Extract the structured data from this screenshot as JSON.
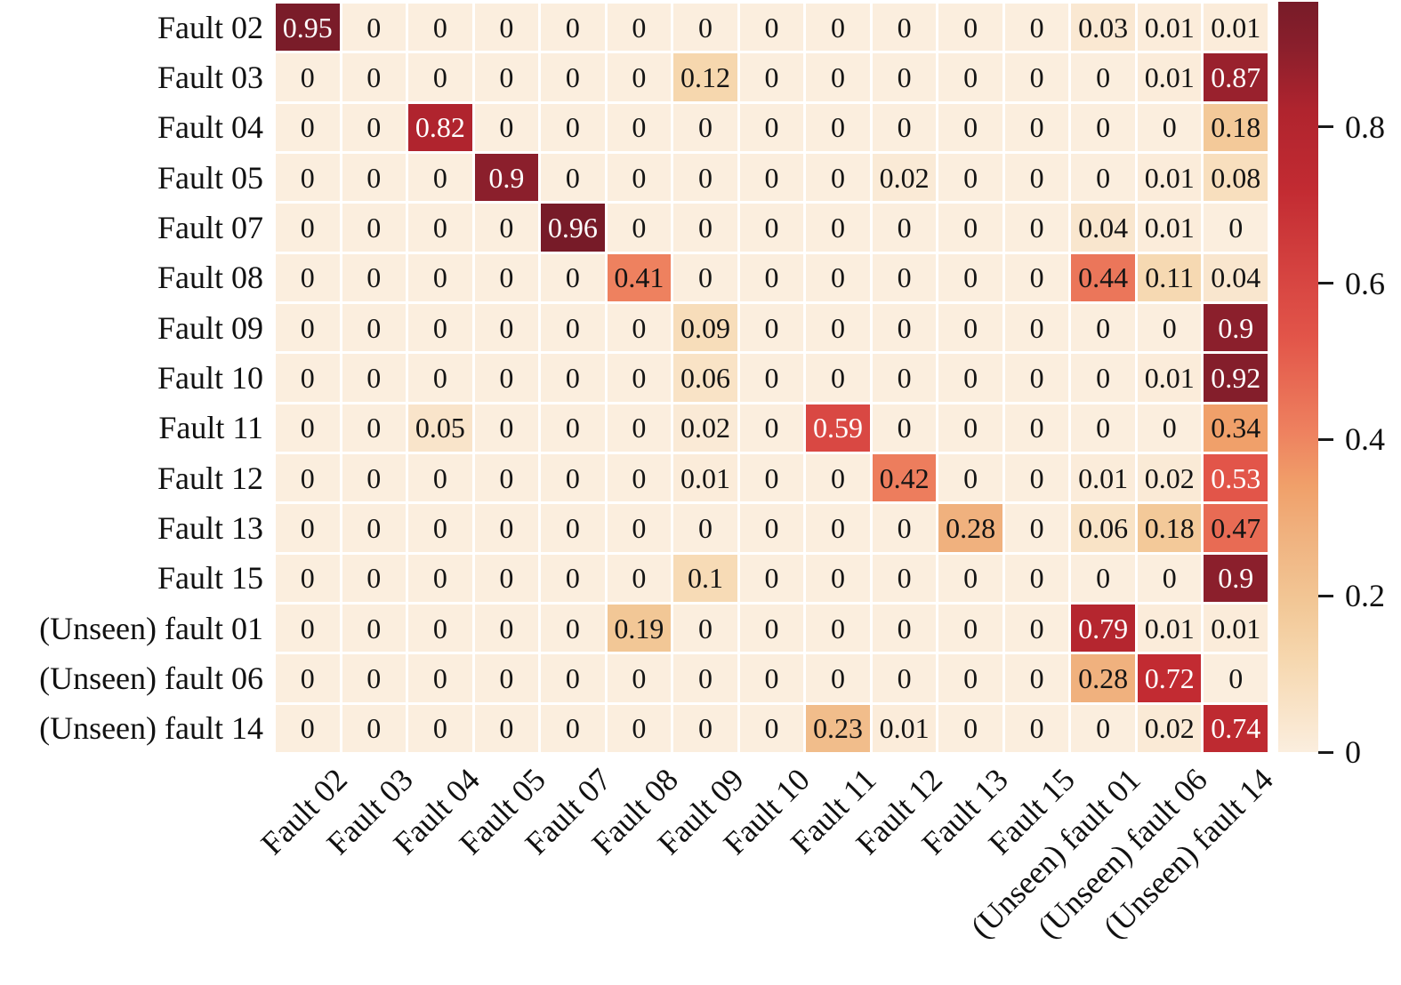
{
  "figure": {
    "background": "#ffffff",
    "grid_gap_color": "#ffffff"
  },
  "chart_data": {
    "type": "heatmap",
    "title": "",
    "xlabel": "",
    "ylabel": "",
    "row_labels": [
      "Fault 02",
      "Fault 03",
      "Fault 04",
      "Fault 05",
      "Fault 07",
      "Fault 08",
      "Fault 09",
      "Fault 10",
      "Fault 11",
      "Fault 12",
      "Fault 13",
      "Fault 15",
      "(Unseen) fault 01",
      "(Unseen) fault 06",
      "(Unseen) fault 14"
    ],
    "col_labels": [
      "Fault 02",
      "Fault 03",
      "Fault 04",
      "Fault 05",
      "Fault 07",
      "Fault 08",
      "Fault 09",
      "Fault 10",
      "Fault 11",
      "Fault 12",
      "Fault 13",
      "Fault 15",
      "(Unseen) fault 01",
      "(Unseen) fault 06",
      "(Unseen) fault 14"
    ],
    "matrix": [
      [
        0.95,
        0,
        0,
        0,
        0,
        0,
        0,
        0,
        0,
        0,
        0,
        0,
        0.03,
        0.01,
        0.01
      ],
      [
        0,
        0,
        0,
        0,
        0,
        0,
        0.12,
        0,
        0,
        0,
        0,
        0,
        0,
        0.01,
        0.87
      ],
      [
        0,
        0,
        0.82,
        0,
        0,
        0,
        0,
        0,
        0,
        0,
        0,
        0,
        0,
        0,
        0.18
      ],
      [
        0,
        0,
        0,
        0.9,
        0,
        0,
        0,
        0,
        0,
        0.02,
        0,
        0,
        0,
        0.01,
        0.08
      ],
      [
        0,
        0,
        0,
        0,
        0.96,
        0,
        0,
        0,
        0,
        0,
        0,
        0,
        0.04,
        0.01,
        0
      ],
      [
        0,
        0,
        0,
        0,
        0,
        0.41,
        0,
        0,
        0,
        0,
        0,
        0,
        0.44,
        0.11,
        0.04
      ],
      [
        0,
        0,
        0,
        0,
        0,
        0,
        0.09,
        0,
        0,
        0,
        0,
        0,
        0,
        0,
        0.9
      ],
      [
        0,
        0,
        0,
        0,
        0,
        0,
        0.06,
        0,
        0,
        0,
        0,
        0,
        0,
        0.01,
        0.92
      ],
      [
        0,
        0,
        0.05,
        0,
        0,
        0,
        0.02,
        0,
        0.59,
        0,
        0,
        0,
        0,
        0,
        0.34
      ],
      [
        0,
        0,
        0,
        0,
        0,
        0,
        0.01,
        0,
        0,
        0.42,
        0,
        0,
        0.01,
        0.02,
        0.53
      ],
      [
        0,
        0,
        0,
        0,
        0,
        0,
        0,
        0,
        0,
        0,
        0.28,
        0,
        0.06,
        0.18,
        0.47
      ],
      [
        0,
        0,
        0,
        0,
        0,
        0,
        0.1,
        0,
        0,
        0,
        0,
        0,
        0,
        0,
        0.9
      ],
      [
        0,
        0,
        0,
        0,
        0,
        0.19,
        0,
        0,
        0,
        0,
        0,
        0,
        0.79,
        0.01,
        0.01
      ],
      [
        0,
        0,
        0,
        0,
        0,
        0,
        0,
        0,
        0,
        0,
        0,
        0,
        0.28,
        0.72,
        0
      ],
      [
        0,
        0,
        0,
        0,
        0,
        0,
        0,
        0,
        0.23,
        0.01,
        0,
        0,
        0,
        0.02,
        0.74
      ]
    ],
    "colorbar": {
      "position": "right",
      "vmin": 0,
      "vmax": 0.96,
      "tick_values": [
        0,
        0.2,
        0.4,
        0.6,
        0.8
      ],
      "tick_labels": [
        "0",
        "0.2",
        "0.4",
        "0.6",
        "0.8"
      ]
    },
    "colormap_stops": [
      [
        0.0,
        "#FBEEDE"
      ],
      [
        0.12,
        "#F6D7AE"
      ],
      [
        0.19,
        "#F2C796"
      ],
      [
        0.28,
        "#F0B17E"
      ],
      [
        0.34,
        "#F0A06A"
      ],
      [
        0.41,
        "#EE815F"
      ],
      [
        0.53,
        "#E25549"
      ],
      [
        0.59,
        "#D94843"
      ],
      [
        0.72,
        "#C22B32"
      ],
      [
        0.82,
        "#B0242E"
      ],
      [
        0.9,
        "#8B1F2C"
      ],
      [
        0.96,
        "#771B28"
      ]
    ],
    "value_text_colors": {
      "light": "#ffffff",
      "dark": "#141414",
      "light_threshold": 0.5
    },
    "legend": "none",
    "grid": "white cell gaps"
  }
}
